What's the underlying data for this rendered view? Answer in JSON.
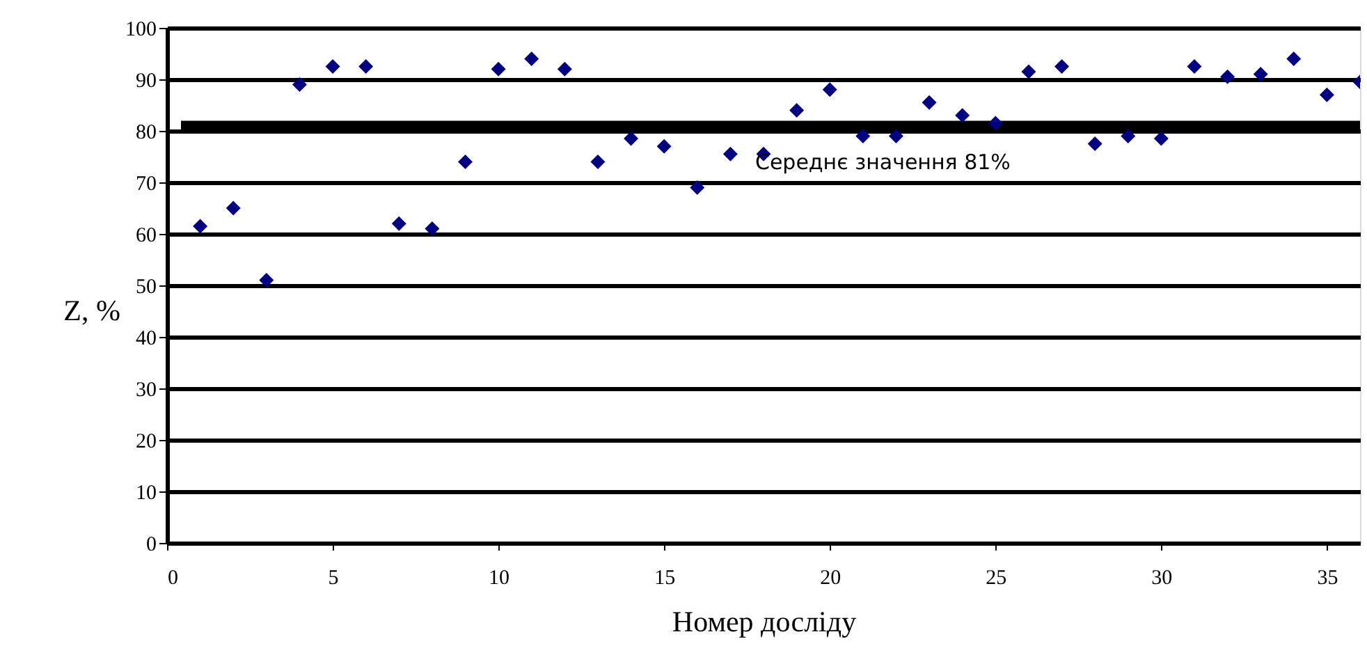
{
  "chart_data": {
    "type": "scatter",
    "xlabel": "Номер досліду",
    "ylabel": "Z, %",
    "x": [
      1,
      2,
      3,
      4,
      5,
      6,
      7,
      8,
      9,
      10,
      11,
      12,
      13,
      14,
      15,
      16,
      17,
      18,
      19,
      20,
      21,
      22,
      23,
      24,
      25,
      26,
      27,
      28,
      29,
      30,
      31,
      32,
      33,
      34,
      35,
      36
    ],
    "series": [
      {
        "color": "#000080",
        "values": [
          61.5,
          65,
          51,
          89,
          92.5,
          92.5,
          62,
          61,
          74,
          92,
          94,
          92,
          74,
          78.5,
          77,
          69,
          75.5,
          75.5,
          84,
          88,
          79,
          79,
          85.5,
          83,
          81.5,
          91.5,
          92.5,
          77.5,
          79,
          78.5,
          92.5,
          90.5,
          91,
          94,
          87,
          89.5
        ]
      }
    ],
    "xlim": [
      0,
      36
    ],
    "xticks": [
      0,
      5,
      10,
      15,
      20,
      25,
      30,
      35
    ],
    "ylim": [
      0,
      100
    ],
    "yticks": [
      0,
      10,
      20,
      30,
      40,
      50,
      60,
      70,
      80,
      90,
      100
    ],
    "grid": "y",
    "marker": "diamond",
    "ref_lines": [
      {
        "axis": "y",
        "value": 81,
        "label": "Середнє значення  81%",
        "color": "#000000"
      }
    ]
  }
}
